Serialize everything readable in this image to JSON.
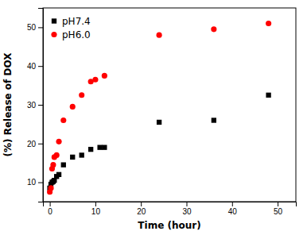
{
  "chart_data": {
    "type": "scatter",
    "xlabel": "Time (hour)",
    "ylabel": "(%) Release of DOX",
    "series": [
      {
        "name": "pH7.4",
        "color": "#000000",
        "marker": "square",
        "x": [
          0.0,
          0.25,
          0.5,
          0.75,
          1.0,
          1.5,
          2.0,
          3.0,
          5.0,
          7.0,
          9.0,
          11.0,
          12.0,
          24.0,
          36.0,
          48.0
        ],
        "values": [
          8.5,
          9.5,
          10.0,
          10.2,
          10.5,
          11.5,
          12.0,
          14.5,
          16.5,
          17.0,
          18.5,
          19.0,
          19.0,
          25.5,
          26.0,
          32.5
        ]
      },
      {
        "name": "pH6.0",
        "color": "#ff0000",
        "marker": "circle",
        "x": [
          0.0,
          0.25,
          0.5,
          0.75,
          1.0,
          1.5,
          2.0,
          3.0,
          5.0,
          7.0,
          9.0,
          10.0,
          12.0,
          24.0,
          36.0,
          48.0
        ],
        "values": [
          7.5,
          8.5,
          13.5,
          14.5,
          16.5,
          17.0,
          20.5,
          26.0,
          29.5,
          32.5,
          36.0,
          36.5,
          37.5,
          48.0,
          49.5,
          51.0
        ]
      }
    ],
    "xlim": [
      -1.5,
      54
    ],
    "ylim": [
      5,
      55
    ],
    "xticks": [
      0,
      10,
      20,
      30,
      40,
      50
    ],
    "yticks": [
      10,
      20,
      30,
      40,
      50
    ],
    "grid": false,
    "legend": "upper left"
  }
}
